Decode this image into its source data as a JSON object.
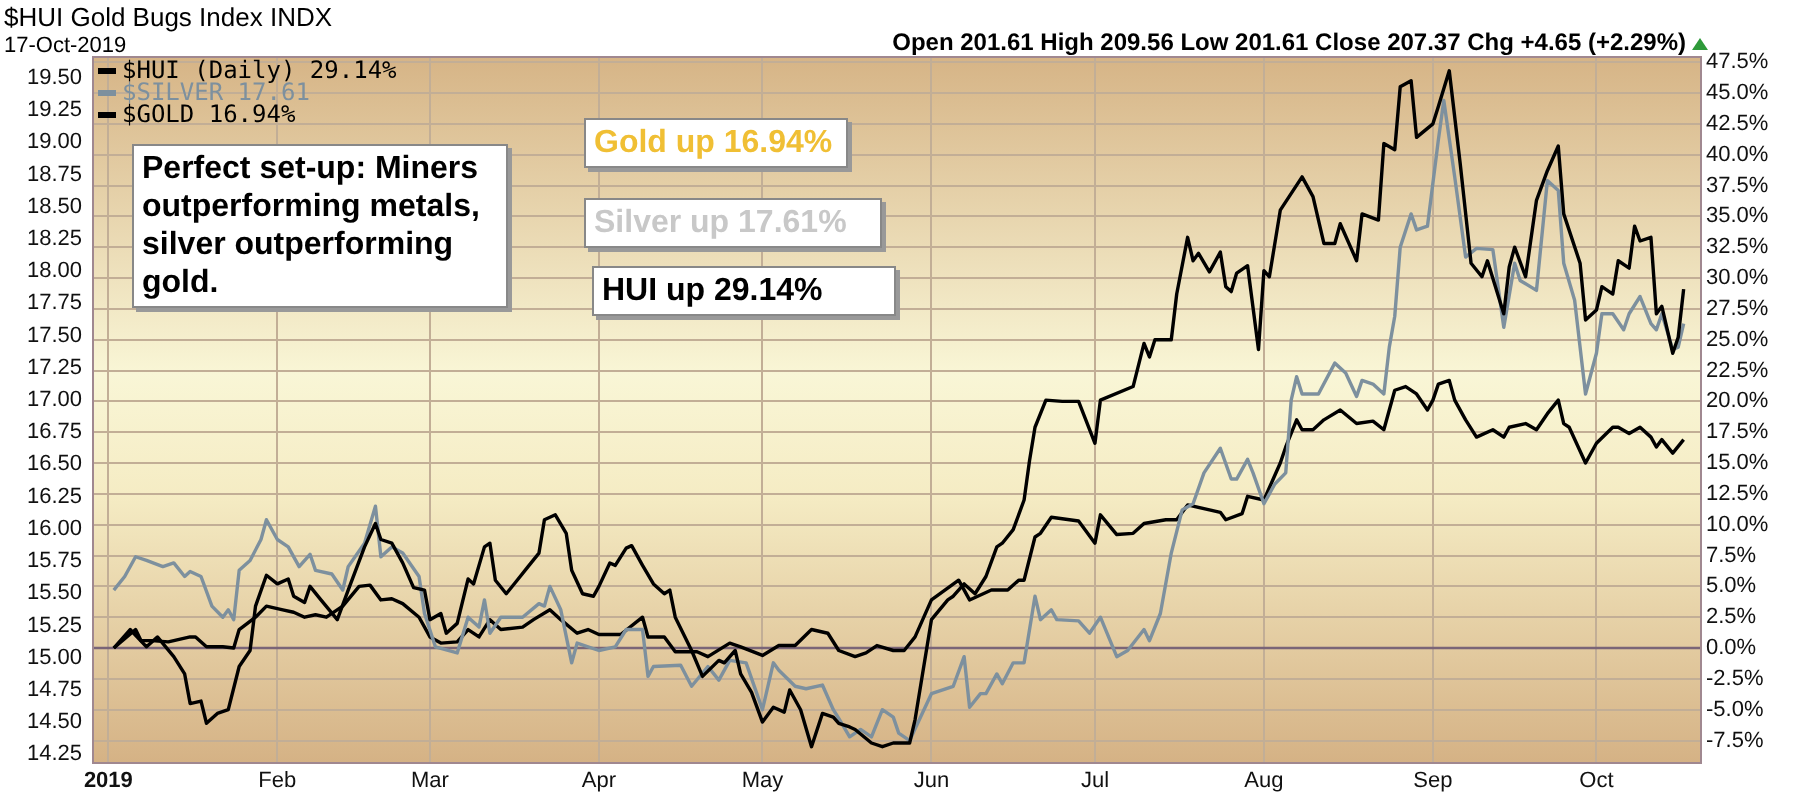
{
  "chart_data": {
    "type": "line",
    "title": "$HUI Gold Bugs Index INDX",
    "subtitle": "17-Oct-2019",
    "annotations": [
      "Open 201.61  High 209.56  Low 201.61  Close 207.37  Chg +4.65 (+2.29%)",
      "Perfect set-up: Miners outperforming metals, silver outperforming gold.",
      "Gold up 16.94%",
      "Silver up 17.61%",
      "HUI up 29.14%"
    ],
    "xlim": [
      "2018-12-29",
      "2019-10-20"
    ],
    "xticks": [
      {
        "value": "2019-01-01",
        "label": "2019"
      },
      {
        "value": "2019-02-01",
        "label": "Feb"
      },
      {
        "value": "2019-03-01",
        "label": "Mar"
      },
      {
        "value": "2019-04-01",
        "label": "Apr"
      },
      {
        "value": "2019-05-01",
        "label": "May"
      },
      {
        "value": "2019-06-01",
        "label": "Jun"
      },
      {
        "value": "2019-07-01",
        "label": "Jul"
      },
      {
        "value": "2019-08-01",
        "label": "Aug"
      },
      {
        "value": "2019-09-01",
        "label": "Sep"
      },
      {
        "value": "2019-10-01",
        "label": "Oct"
      }
    ],
    "ylim": [
      14.19,
      19.67
    ],
    "yticks": [
      {
        "value": 14.25,
        "label": "14.25"
      },
      {
        "value": 14.5,
        "label": "14.50"
      },
      {
        "value": 14.75,
        "label": "14.75"
      },
      {
        "value": 15,
        "label": "15.00"
      },
      {
        "value": 15.25,
        "label": "15.25"
      },
      {
        "value": 15.5,
        "label": "15.50"
      },
      {
        "value": 15.75,
        "label": "15.75"
      },
      {
        "value": 16,
        "label": "16.00"
      },
      {
        "value": 16.25,
        "label": "16.25"
      },
      {
        "value": 16.5,
        "label": "16.50"
      },
      {
        "value": 16.75,
        "label": "16.75"
      },
      {
        "value": 17,
        "label": "17.00"
      },
      {
        "value": 17.25,
        "label": "17.25"
      },
      {
        "value": 17.5,
        "label": "17.50"
      },
      {
        "value": 17.75,
        "label": "17.75"
      },
      {
        "value": 18,
        "label": "18.00"
      },
      {
        "value": 18.25,
        "label": "18.25"
      },
      {
        "value": 18.5,
        "label": "18.50"
      },
      {
        "value": 18.75,
        "label": "18.75"
      },
      {
        "value": 19,
        "label": "19.00"
      },
      {
        "value": 19.25,
        "label": "19.25"
      },
      {
        "value": 19.5,
        "label": "19.50"
      }
    ],
    "y2lim": [
      -9.24,
      48.0
    ],
    "y2ticks": [
      {
        "value": -7.5,
        "label": "-7.5%"
      },
      {
        "value": -5,
        "label": "-5.0%"
      },
      {
        "value": -2.5,
        "label": "-2.5%"
      },
      {
        "value": 0,
        "label": "0.0%"
      },
      {
        "value": 2.5,
        "label": "2.5%"
      },
      {
        "value": 5,
        "label": "5.0%"
      },
      {
        "value": 7.5,
        "label": "7.5%"
      },
      {
        "value": 10,
        "label": "10.0%"
      },
      {
        "value": 12.5,
        "label": "12.5%"
      },
      {
        "value": 15,
        "label": "15.0%"
      },
      {
        "value": 17.5,
        "label": "17.5%"
      },
      {
        "value": 20,
        "label": "20.0%"
      },
      {
        "value": 22.5,
        "label": "22.5%"
      },
      {
        "value": 25,
        "label": "25.0%"
      },
      {
        "value": 27.5,
        "label": "27.5%"
      },
      {
        "value": 30,
        "label": "30.0%"
      },
      {
        "value": 32.5,
        "label": "32.5%"
      },
      {
        "value": 35,
        "label": "35.0%"
      },
      {
        "value": 37.5,
        "label": "37.5%"
      },
      {
        "value": 40,
        "label": "40.0%"
      },
      {
        "value": 42.5,
        "label": "42.5%"
      },
      {
        "value": 45,
        "label": "45.0%"
      },
      {
        "value": 47.5,
        "label": "47.5%"
      }
    ],
    "ref_lines": [
      {
        "axis": "y2",
        "value": 0,
        "color": "#7a6577"
      }
    ],
    "grid": true,
    "legend": "top left",
    "series": [
      {
        "name": "$HUI (Daily) 29.14%",
        "color": "#000000",
        "axis": "y2",
        "x": [
          "2019-01-02",
          "2019-01-05",
          "2019-01-08",
          "2019-01-10",
          "2019-01-13",
          "2019-01-15",
          "2019-01-16",
          "2019-01-18",
          "2019-01-19",
          "2019-01-21",
          "2019-01-23",
          "2019-01-25",
          "2019-01-27",
          "2019-01-28",
          "2019-01-30",
          "2019-02-01",
          "2019-02-03",
          "2019-02-04",
          "2019-02-06",
          "2019-02-07",
          "2019-02-09",
          "2019-02-12",
          "2019-02-14",
          "2019-02-17",
          "2019-02-19",
          "2019-02-20",
          "2019-02-22",
          "2019-02-24",
          "2019-02-26",
          "2019-02-28",
          "2019-03-01",
          "2019-03-03",
          "2019-03-04",
          "2019-03-06",
          "2019-03-08",
          "2019-03-09",
          "2019-03-11",
          "2019-03-12",
          "2019-03-13",
          "2019-03-15",
          "2019-03-17",
          "2019-03-19",
          "2019-03-21",
          "2019-03-22",
          "2019-03-24",
          "2019-03-26",
          "2019-03-27",
          "2019-03-29",
          "2019-03-31",
          "2019-04-01",
          "2019-04-03",
          "2019-04-04",
          "2019-04-06",
          "2019-04-07",
          "2019-04-09",
          "2019-04-11",
          "2019-04-13",
          "2019-04-14",
          "2019-04-15",
          "2019-04-18",
          "2019-04-20",
          "2019-04-23",
          "2019-04-24",
          "2019-04-26",
          "2019-04-27",
          "2019-04-29",
          "2019-05-01",
          "2019-05-03",
          "2019-05-05",
          "2019-05-06",
          "2019-05-08",
          "2019-05-10",
          "2019-05-12",
          "2019-05-14",
          "2019-05-15",
          "2019-05-17",
          "2019-05-18",
          "2019-05-21",
          "2019-05-23",
          "2019-05-25",
          "2019-05-28",
          "2019-05-29",
          "2019-05-31",
          "2019-06-01",
          "2019-06-04",
          "2019-06-05",
          "2019-06-07",
          "2019-06-09",
          "2019-06-11",
          "2019-06-13",
          "2019-06-14",
          "2019-06-16",
          "2019-06-18",
          "2019-06-19",
          "2019-06-20",
          "2019-06-22",
          "2019-06-25",
          "2019-06-28",
          "2019-07-01",
          "2019-07-02",
          "2019-07-08",
          "2019-07-10",
          "2019-07-11",
          "2019-07-12",
          "2019-07-15",
          "2019-07-16",
          "2019-07-18",
          "2019-07-19",
          "2019-07-20",
          "2019-07-22",
          "2019-07-24",
          "2019-07-25",
          "2019-07-26",
          "2019-07-27",
          "2019-07-29",
          "2019-07-31",
          "2019-08-01",
          "2019-08-02",
          "2019-08-04",
          "2019-08-08",
          "2019-08-10",
          "2019-08-12",
          "2019-08-14",
          "2019-08-15",
          "2019-08-18",
          "2019-08-19",
          "2019-08-22",
          "2019-08-23",
          "2019-08-25",
          "2019-08-26",
          "2019-08-28",
          "2019-08-29",
          "2019-09-01",
          "2019-09-02",
          "2019-09-04",
          "2019-09-06",
          "2019-09-08",
          "2019-09-10",
          "2019-09-11",
          "2019-09-14",
          "2019-09-15",
          "2019-09-16",
          "2019-09-18",
          "2019-09-20",
          "2019-09-22",
          "2019-09-24",
          "2019-09-25",
          "2019-09-28",
          "2019-09-29",
          "2019-10-01",
          "2019-10-02",
          "2019-10-04",
          "2019-10-05",
          "2019-10-07",
          "2019-10-08",
          "2019-10-09",
          "2019-10-11",
          "2019-10-12",
          "2019-10-13",
          "2019-10-15",
          "2019-10-16",
          "2019-10-17"
        ],
        "values": [
          0.0,
          1.5,
          0.1,
          0.9,
          -0.7,
          -2.1,
          -4.5,
          -4.3,
          -6.1,
          -5.3,
          -5.0,
          -1.5,
          -0.2,
          3.4,
          5.9,
          5.2,
          5.6,
          4.2,
          3.7,
          5.0,
          3.9,
          2.3,
          4.7,
          8.2,
          10.1,
          8.8,
          8.5,
          6.9,
          4.9,
          4.7,
          2.3,
          2.8,
          1.2,
          2.0,
          5.6,
          5.2,
          8.2,
          8.5,
          5.5,
          4.4,
          5.5,
          6.6,
          7.7,
          10.4,
          10.8,
          9.3,
          6.3,
          4.4,
          4.2,
          5.0,
          6.9,
          6.7,
          8.1,
          8.3,
          6.7,
          5.2,
          4.4,
          4.7,
          2.5,
          -0.2,
          -2.3,
          -1.0,
          -1.2,
          -0.2,
          -2.1,
          -3.6,
          -6.0,
          -4.8,
          -5.2,
          -3.4,
          -5.0,
          -8.0,
          -5.3,
          -5.6,
          -6.1,
          -6.4,
          -6.6,
          -7.7,
          -8.0,
          -7.7,
          -7.7,
          -5.8,
          -0.4,
          2.3,
          3.9,
          4.2,
          5.2,
          4.4,
          5.8,
          8.2,
          8.5,
          9.6,
          12.0,
          15.2,
          17.9,
          20.1,
          20.0,
          20.0,
          16.6,
          20.1,
          21.2,
          24.7,
          23.6,
          25.0,
          25.0,
          28.7,
          33.3,
          31.4,
          32.0,
          30.5,
          32.1,
          29.3,
          28.9,
          30.4,
          31.0,
          24.2,
          30.6,
          30.1,
          35.5,
          38.2,
          36.6,
          32.8,
          32.8,
          34.4,
          31.4,
          35.2,
          34.7,
          40.9,
          40.4,
          45.5,
          46.0,
          41.4,
          42.5,
          43.9,
          46.8,
          39.3,
          31.2,
          30.1,
          31.4,
          27.1,
          30.9,
          32.5,
          30.1,
          36.3,
          38.7,
          40.7,
          35.2,
          31.2,
          26.6,
          27.4,
          29.3,
          28.7,
          31.4,
          30.8,
          34.2,
          33.0,
          33.3,
          27.1,
          27.7,
          23.9,
          25.2,
          29.1
        ]
      },
      {
        "name": "$SILVER 17.61",
        "color": "#7d909e",
        "axis": "y2",
        "x": [
          "2019-01-02",
          "2019-01-04",
          "2019-01-06",
          "2019-01-08",
          "2019-01-11",
          "2019-01-13",
          "2019-01-15",
          "2019-01-16",
          "2019-01-18",
          "2019-01-20",
          "2019-01-22",
          "2019-01-23",
          "2019-01-24",
          "2019-01-25",
          "2019-01-27",
          "2019-01-29",
          "2019-01-30",
          "2019-02-01",
          "2019-02-03",
          "2019-02-05",
          "2019-02-07",
          "2019-02-08",
          "2019-02-11",
          "2019-02-13",
          "2019-02-14",
          "2019-02-17",
          "2019-02-19",
          "2019-02-20",
          "2019-02-22",
          "2019-02-24",
          "2019-02-27",
          "2019-02-28",
          "2019-03-02",
          "2019-03-06",
          "2019-03-08",
          "2019-03-10",
          "2019-03-11",
          "2019-03-12",
          "2019-03-14",
          "2019-03-18",
          "2019-03-21",
          "2019-03-22",
          "2019-03-23",
          "2019-03-25",
          "2019-03-27",
          "2019-03-28",
          "2019-04-01",
          "2019-04-04",
          "2019-04-06",
          "2019-04-09",
          "2019-04-10",
          "2019-04-11",
          "2019-04-16",
          "2019-04-18",
          "2019-04-21",
          "2019-04-23",
          "2019-04-25",
          "2019-04-28",
          "2019-05-01",
          "2019-05-03",
          "2019-05-04",
          "2019-05-07",
          "2019-05-09",
          "2019-05-12",
          "2019-05-14",
          "2019-05-15",
          "2019-05-17",
          "2019-05-19",
          "2019-05-21",
          "2019-05-23",
          "2019-05-25",
          "2019-05-26",
          "2019-05-28",
          "2019-06-01",
          "2019-06-05",
          "2019-06-07",
          "2019-06-08",
          "2019-06-10",
          "2019-06-11",
          "2019-06-13",
          "2019-06-14",
          "2019-06-16",
          "2019-06-18",
          "2019-06-20",
          "2019-06-21",
          "2019-06-23",
          "2019-06-24",
          "2019-06-28",
          "2019-06-30",
          "2019-07-02",
          "2019-07-05",
          "2019-07-07",
          "2019-07-10",
          "2019-07-11",
          "2019-07-13",
          "2019-07-15",
          "2019-07-17",
          "2019-07-19",
          "2019-07-21",
          "2019-07-24",
          "2019-07-26",
          "2019-07-27",
          "2019-07-29",
          "2019-07-30",
          "2019-08-01",
          "2019-08-03",
          "2019-08-05",
          "2019-08-06",
          "2019-08-07",
          "2019-08-08",
          "2019-08-11",
          "2019-08-14",
          "2019-08-16",
          "2019-08-18",
          "2019-08-19",
          "2019-08-21",
          "2019-08-23",
          "2019-08-24",
          "2019-08-25",
          "2019-08-26",
          "2019-08-28",
          "2019-08-29",
          "2019-08-31",
          "2019-09-02",
          "2019-09-03",
          "2019-09-05",
          "2019-09-07",
          "2019-09-09",
          "2019-09-12",
          "2019-09-14",
          "2019-09-16",
          "2019-09-17",
          "2019-09-20",
          "2019-09-22",
          "2019-09-24",
          "2019-09-25",
          "2019-09-27",
          "2019-09-29",
          "2019-10-01",
          "2019-10-02",
          "2019-10-04",
          "2019-10-06",
          "2019-10-07",
          "2019-10-09",
          "2019-10-11",
          "2019-10-12",
          "2019-10-13",
          "2019-10-15",
          "2019-10-16",
          "2019-10-17"
        ],
        "values": [
          4.7,
          5.8,
          7.4,
          7.1,
          6.6,
          6.9,
          5.8,
          6.2,
          5.8,
          3.4,
          2.5,
          3.1,
          2.3,
          6.3,
          7.1,
          8.8,
          10.4,
          8.8,
          8.2,
          6.6,
          7.6,
          6.3,
          6.0,
          4.7,
          6.6,
          8.5,
          11.5,
          7.4,
          8.2,
          7.7,
          5.8,
          2.8,
          0.1,
          -0.4,
          2.5,
          1.7,
          3.9,
          1.2,
          2.5,
          2.5,
          3.6,
          3.4,
          5.0,
          3.1,
          -1.2,
          0.4,
          -0.2,
          0.1,
          1.5,
          1.5,
          -2.3,
          -1.5,
          -1.4,
          -3.1,
          -1.5,
          -2.6,
          -1.0,
          -1.2,
          -5.0,
          -1.2,
          -1.8,
          -3.1,
          -3.3,
          -3.0,
          -5.0,
          -5.7,
          -7.2,
          -6.6,
          -7.2,
          -5.0,
          -5.6,
          -6.9,
          -7.5,
          -3.7,
          -3.1,
          -0.7,
          -4.8,
          -3.7,
          -3.7,
          -2.1,
          -2.9,
          -1.2,
          -1.2,
          4.2,
          2.3,
          3.1,
          2.3,
          2.2,
          1.2,
          2.5,
          -0.7,
          -0.2,
          1.5,
          0.6,
          2.8,
          7.7,
          11.2,
          11.7,
          14.2,
          16.2,
          13.7,
          13.7,
          15.3,
          14.2,
          11.7,
          13.3,
          14.2,
          20.1,
          22.0,
          20.6,
          20.6,
          23.1,
          22.3,
          20.4,
          21.7,
          21.4,
          20.6,
          24.4,
          26.9,
          32.5,
          35.2,
          33.9,
          34.2,
          41.2,
          44.4,
          38.2,
          31.7,
          32.4,
          32.3,
          26.0,
          31.2,
          29.8,
          29.0,
          37.9,
          37.1,
          31.2,
          28.2,
          20.6,
          23.9,
          27.1,
          27.1,
          25.8,
          27.1,
          28.5,
          26.3,
          25.8,
          27.1,
          24.2,
          24.4,
          26.3
        ]
      },
      {
        "name": "$GOLD 16.94%",
        "color": "#000000",
        "axis": "y2",
        "x": [
          "2019-01-02",
          "2019-01-06",
          "2019-01-07",
          "2019-01-09",
          "2019-01-12",
          "2019-01-16",
          "2019-01-17",
          "2019-01-19",
          "2019-01-22",
          "2019-01-24",
          "2019-01-25",
          "2019-01-28",
          "2019-01-30",
          "2019-02-02",
          "2019-02-04",
          "2019-02-06",
          "2019-02-08",
          "2019-02-10",
          "2019-02-13",
          "2019-02-16",
          "2019-02-18",
          "2019-02-20",
          "2019-02-22",
          "2019-02-24",
          "2019-02-27",
          "2019-03-01",
          "2019-03-03",
          "2019-03-06",
          "2019-03-08",
          "2019-03-10",
          "2019-03-12",
          "2019-03-14",
          "2019-03-18",
          "2019-03-20",
          "2019-03-23",
          "2019-03-25",
          "2019-03-28",
          "2019-03-30",
          "2019-04-01",
          "2019-04-05",
          "2019-04-09",
          "2019-04-10",
          "2019-04-13",
          "2019-04-15",
          "2019-04-19",
          "2019-04-21",
          "2019-04-25",
          "2019-04-27",
          "2019-05-01",
          "2019-05-04",
          "2019-05-07",
          "2019-05-10",
          "2019-05-13",
          "2019-05-15",
          "2019-05-18",
          "2019-05-20",
          "2019-05-22",
          "2019-05-25",
          "2019-05-27",
          "2019-05-29",
          "2019-06-01",
          "2019-06-06",
          "2019-06-08",
          "2019-06-12",
          "2019-06-15",
          "2019-06-17",
          "2019-06-18",
          "2019-06-20",
          "2019-06-21",
          "2019-06-23",
          "2019-06-28",
          "2019-07-01",
          "2019-07-02",
          "2019-07-05",
          "2019-07-08",
          "2019-07-10",
          "2019-07-14",
          "2019-07-16",
          "2019-07-18",
          "2019-07-22",
          "2019-07-24",
          "2019-07-25",
          "2019-07-28",
          "2019-07-29",
          "2019-08-01",
          "2019-08-04",
          "2019-08-05",
          "2019-08-07",
          "2019-08-08",
          "2019-08-10",
          "2019-08-12",
          "2019-08-15",
          "2019-08-18",
          "2019-08-21",
          "2019-08-23",
          "2019-08-24",
          "2019-08-25",
          "2019-08-27",
          "2019-08-29",
          "2019-08-31",
          "2019-09-01",
          "2019-09-02",
          "2019-09-04",
          "2019-09-05",
          "2019-09-07",
          "2019-09-09",
          "2019-09-12",
          "2019-09-14",
          "2019-09-15",
          "2019-09-18",
          "2019-09-20",
          "2019-09-22",
          "2019-09-24",
          "2019-09-25",
          "2019-09-26",
          "2019-09-29",
          "2019-10-01",
          "2019-10-04",
          "2019-10-05",
          "2019-10-07",
          "2019-10-09",
          "2019-10-11",
          "2019-10-12",
          "2019-10-13",
          "2019-10-15",
          "2019-10-17"
        ],
        "values": [
          0.0,
          1.5,
          0.6,
          0.6,
          0.5,
          0.9,
          0.9,
          0.1,
          0.1,
          0.0,
          1.5,
          2.5,
          3.4,
          3.1,
          2.9,
          2.5,
          2.7,
          2.5,
          3.4,
          5.0,
          5.1,
          3.9,
          4.0,
          3.6,
          2.5,
          0.9,
          0.4,
          0.5,
          1.5,
          0.9,
          2.3,
          1.5,
          1.7,
          2.3,
          3.1,
          2.3,
          1.2,
          1.5,
          1.1,
          1.1,
          2.5,
          0.9,
          0.9,
          -0.3,
          -0.3,
          -0.7,
          0.4,
          0.1,
          -0.6,
          0.2,
          0.2,
          1.5,
          1.2,
          -0.2,
          -0.7,
          -0.4,
          0.2,
          -0.2,
          -0.2,
          0.9,
          3.9,
          5.5,
          3.9,
          4.7,
          4.7,
          5.5,
          5.5,
          9.0,
          9.3,
          10.6,
          10.3,
          8.5,
          10.8,
          9.2,
          9.3,
          10.1,
          10.4,
          10.4,
          11.6,
          11.2,
          11.0,
          10.4,
          10.9,
          12.3,
          12.0,
          15.0,
          16.3,
          18.5,
          17.7,
          17.7,
          18.5,
          19.3,
          18.2,
          18.4,
          17.7,
          19.3,
          20.9,
          21.2,
          20.6,
          19.3,
          20.1,
          21.4,
          21.7,
          20.1,
          18.5,
          17.1,
          17.7,
          17.1,
          17.9,
          18.2,
          17.7,
          19.0,
          20.1,
          18.2,
          17.9,
          15.0,
          16.6,
          17.9,
          17.9,
          17.4,
          17.9,
          17.1,
          16.3,
          16.9,
          15.8,
          16.9
        ]
      }
    ]
  }
}
